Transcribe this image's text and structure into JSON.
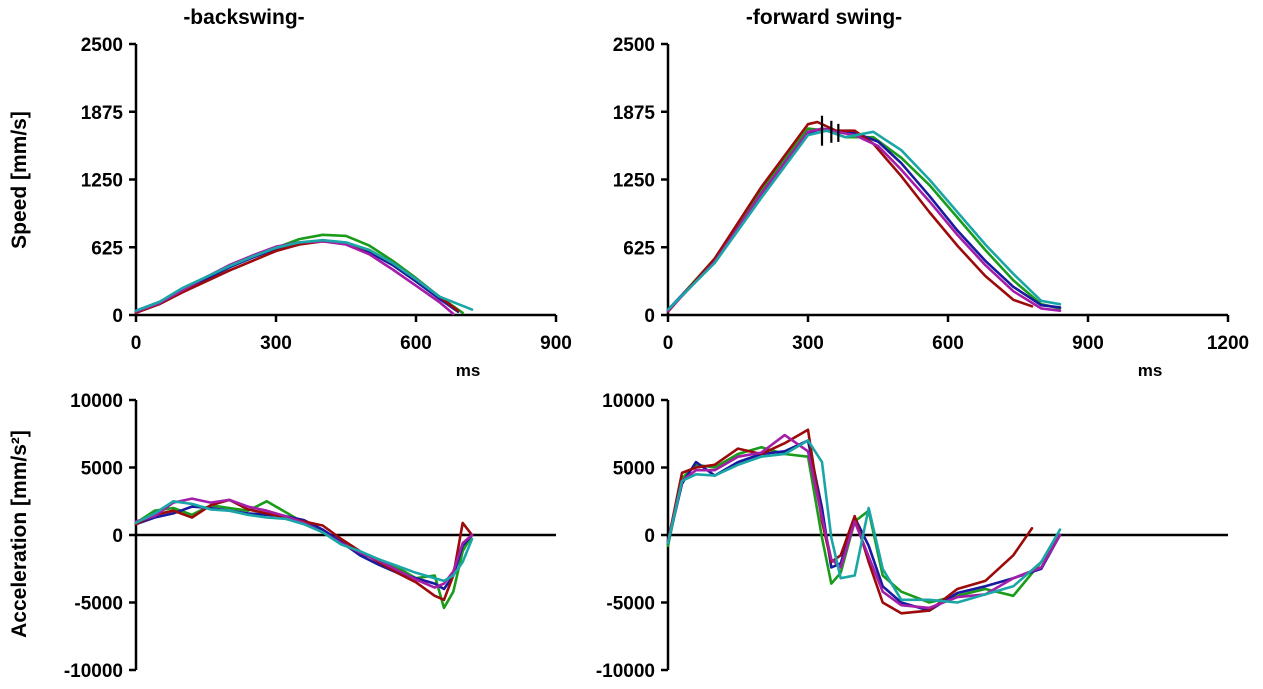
{
  "colors": {
    "green": "#1a9c1a",
    "blue": "#1a1aa0",
    "darkred": "#9c0a0a",
    "magenta": "#a41ea8",
    "teal": "#1aa6a6"
  },
  "chart_data": [
    {
      "id": "speed-backswing",
      "type": "line",
      "title": "-backswing-",
      "ylabel": "Speed [mm/s]",
      "xlabel": "",
      "xlim": [
        0,
        900
      ],
      "ylim": [
        0,
        2500
      ],
      "xticks": [
        "0",
        "300",
        "600",
        "900"
      ],
      "yticks": [
        "0",
        "625",
        "1250",
        "1875",
        "2500"
      ],
      "series": [
        {
          "color": "#1a9c1a",
          "x": [
            0,
            50,
            100,
            150,
            200,
            250,
            300,
            350,
            400,
            450,
            500,
            550,
            600,
            650,
            700
          ],
          "y": [
            30,
            110,
            230,
            330,
            440,
            540,
            620,
            700,
            740,
            730,
            640,
            500,
            340,
            170,
            20
          ]
        },
        {
          "color": "#1a1aa0",
          "x": [
            0,
            50,
            100,
            150,
            200,
            250,
            300,
            350,
            400,
            450,
            500,
            550,
            600,
            650,
            690
          ],
          "y": [
            40,
            120,
            230,
            330,
            440,
            530,
            610,
            660,
            690,
            660,
            580,
            460,
            310,
            150,
            30
          ]
        },
        {
          "color": "#9c0a0a",
          "x": [
            0,
            50,
            100,
            150,
            200,
            250,
            300,
            350,
            400,
            450,
            500,
            550,
            600,
            650,
            690
          ],
          "y": [
            20,
            100,
            210,
            310,
            410,
            500,
            590,
            650,
            680,
            660,
            600,
            480,
            330,
            170,
            40
          ]
        },
        {
          "color": "#a41ea8",
          "x": [
            0,
            50,
            100,
            150,
            200,
            250,
            300,
            350,
            400,
            450,
            500,
            550,
            600,
            650,
            680
          ],
          "y": [
            30,
            110,
            230,
            350,
            460,
            550,
            630,
            670,
            680,
            650,
            560,
            420,
            270,
            120,
            10
          ]
        },
        {
          "color": "#1aa6a6",
          "x": [
            0,
            50,
            100,
            150,
            200,
            250,
            300,
            350,
            400,
            450,
            500,
            550,
            600,
            650,
            720
          ],
          "y": [
            40,
            120,
            250,
            350,
            450,
            540,
            620,
            670,
            690,
            670,
            600,
            480,
            330,
            170,
            50
          ]
        }
      ]
    },
    {
      "id": "speed-forward",
      "type": "line",
      "title": "-forward swing-",
      "ylabel": "",
      "xlabel": "ms",
      "xlim": [
        0,
        1200
      ],
      "ylim": [
        0,
        2500
      ],
      "xticks": [
        "0",
        "300",
        "600",
        "900",
        "1200"
      ],
      "yticks": [
        "0",
        "625",
        "1250",
        "1875",
        "2500"
      ],
      "series": [
        {
          "color": "#1a9c1a",
          "x": [
            0,
            100,
            200,
            300,
            340,
            380,
            440,
            500,
            560,
            620,
            680,
            740,
            800,
            840
          ],
          "y": [
            40,
            520,
            1150,
            1720,
            1700,
            1640,
            1640,
            1450,
            1200,
            900,
            600,
            320,
            100,
            60
          ]
        },
        {
          "color": "#1a1aa0",
          "x": [
            0,
            100,
            200,
            300,
            330,
            360,
            400,
            450,
            500,
            560,
            620,
            680,
            740,
            800,
            840
          ],
          "y": [
            50,
            500,
            1100,
            1680,
            1720,
            1700,
            1680,
            1600,
            1400,
            1100,
            780,
            500,
            260,
            90,
            70
          ]
        },
        {
          "color": "#9c0a0a",
          "x": [
            0,
            100,
            200,
            300,
            320,
            360,
            400,
            440,
            500,
            560,
            620,
            680,
            740,
            780
          ],
          "y": [
            30,
            520,
            1180,
            1760,
            1780,
            1700,
            1700,
            1580,
            1280,
            950,
            640,
            360,
            140,
            80
          ]
        },
        {
          "color": "#a41ea8",
          "x": [
            0,
            100,
            200,
            300,
            330,
            360,
            400,
            450,
            500,
            560,
            620,
            680,
            740,
            800,
            840
          ],
          "y": [
            40,
            490,
            1120,
            1690,
            1720,
            1690,
            1660,
            1560,
            1340,
            1050,
            740,
            460,
            220,
            60,
            40
          ]
        },
        {
          "color": "#1aa6a6",
          "x": [
            0,
            100,
            200,
            300,
            340,
            380,
            440,
            500,
            560,
            620,
            680,
            740,
            800,
            840
          ],
          "y": [
            50,
            480,
            1080,
            1660,
            1700,
            1640,
            1690,
            1520,
            1250,
            950,
            650,
            380,
            130,
            100
          ]
        }
      ]
    },
    {
      "id": "acc-backswing",
      "type": "line",
      "title": "",
      "ylabel": "Acceleration [mm/s²]",
      "xlabel": "",
      "xlim": [
        0,
        900
      ],
      "ylim": [
        -10000,
        10000
      ],
      "xticks": [],
      "yticks": [
        "-10000",
        "-5000",
        "0",
        "5000",
        "10000"
      ],
      "series": [
        {
          "color": "#1a9c1a",
          "x": [
            0,
            40,
            80,
            120,
            160,
            200,
            240,
            280,
            320,
            360,
            400,
            440,
            480,
            520,
            560,
            600,
            640,
            660,
            680,
            700,
            720
          ],
          "y": [
            900,
            1800,
            2000,
            1500,
            2200,
            2000,
            1800,
            2500,
            1700,
            900,
            300,
            -600,
            -1400,
            -1800,
            -2400,
            -3200,
            -3000,
            -5400,
            -4200,
            -1200,
            0
          ]
        },
        {
          "color": "#1a1aa0",
          "x": [
            0,
            40,
            80,
            120,
            160,
            200,
            240,
            280,
            320,
            360,
            400,
            440,
            480,
            520,
            560,
            600,
            640,
            660,
            680,
            700,
            720
          ],
          "y": [
            800,
            1300,
            1600,
            2100,
            2000,
            1800,
            1600,
            1500,
            1400,
            1100,
            400,
            -500,
            -1500,
            -2200,
            -2800,
            -3200,
            -3600,
            -4000,
            -3000,
            -800,
            0
          ]
        },
        {
          "color": "#9c0a0a",
          "x": [
            0,
            40,
            80,
            120,
            160,
            200,
            240,
            280,
            320,
            360,
            400,
            440,
            480,
            520,
            560,
            600,
            640,
            660,
            680,
            700,
            720
          ],
          "y": [
            800,
            1500,
            1800,
            1300,
            2200,
            2600,
            1900,
            1600,
            1300,
            1000,
            700,
            -300,
            -1200,
            -2000,
            -2800,
            -3500,
            -4500,
            -4800,
            -3000,
            900,
            0
          ]
        },
        {
          "color": "#a41ea8",
          "x": [
            0,
            40,
            80,
            120,
            160,
            200,
            240,
            280,
            320,
            360,
            400,
            440,
            480,
            520,
            560,
            600,
            640,
            660,
            680,
            700,
            720
          ],
          "y": [
            1000,
            1400,
            2400,
            2700,
            2400,
            2600,
            2100,
            1800,
            1400,
            900,
            200,
            -600,
            -1300,
            -1900,
            -2600,
            -3300,
            -3900,
            -3600,
            -2700,
            -600,
            0
          ]
        },
        {
          "color": "#1aa6a6",
          "x": [
            0,
            40,
            80,
            120,
            160,
            200,
            240,
            280,
            320,
            360,
            400,
            440,
            480,
            520,
            560,
            600,
            640,
            660,
            680,
            700,
            720
          ],
          "y": [
            900,
            1600,
            2500,
            2300,
            1900,
            1800,
            1500,
            1300,
            1200,
            800,
            200,
            -700,
            -1200,
            -1800,
            -2300,
            -2800,
            -3200,
            -3400,
            -3000,
            -2000,
            -300
          ]
        }
      ]
    },
    {
      "id": "acc-forward",
      "type": "line",
      "title": "",
      "ylabel": "",
      "xlabel": "",
      "xlim": [
        0,
        1200
      ],
      "ylim": [
        -10000,
        10000
      ],
      "xticks": [],
      "yticks": [
        "-10000",
        "-5000",
        "0",
        "5000",
        "10000"
      ],
      "series": [
        {
          "color": "#1a9c1a",
          "x": [
            0,
            30,
            60,
            100,
            150,
            200,
            250,
            300,
            330,
            350,
            370,
            400,
            430,
            460,
            500,
            560,
            620,
            680,
            740,
            800,
            840
          ],
          "y": [
            -800,
            4200,
            5200,
            5000,
            6000,
            6500,
            6000,
            5800,
            -200,
            -3600,
            -2800,
            1000,
            1800,
            -3000,
            -4200,
            -5000,
            -4500,
            -4000,
            -4500,
            -2000,
            0
          ]
        },
        {
          "color": "#1a1aa0",
          "x": [
            0,
            30,
            60,
            100,
            150,
            200,
            250,
            300,
            330,
            350,
            370,
            400,
            430,
            460,
            500,
            560,
            620,
            680,
            740,
            800,
            840
          ],
          "y": [
            -600,
            3800,
            5400,
            4400,
            5400,
            6000,
            6200,
            7000,
            2000,
            -2400,
            -2100,
            1300,
            -800,
            -3800,
            -5000,
            -5600,
            -4300,
            -3800,
            -3200,
            -2500,
            0
          ]
        },
        {
          "color": "#9c0a0a",
          "x": [
            0,
            30,
            60,
            100,
            150,
            200,
            250,
            300,
            330,
            350,
            370,
            400,
            430,
            460,
            500,
            560,
            620,
            680,
            740,
            780
          ],
          "y": [
            -500,
            4600,
            5000,
            5200,
            6400,
            6000,
            6800,
            7800,
            1000,
            -2000,
            -1500,
            1400,
            -2000,
            -5000,
            -5800,
            -5600,
            -4000,
            -3400,
            -1500,
            500
          ]
        },
        {
          "color": "#a41ea8",
          "x": [
            0,
            30,
            60,
            100,
            150,
            200,
            250,
            300,
            330,
            350,
            370,
            400,
            430,
            460,
            500,
            560,
            620,
            680,
            740,
            800,
            840
          ],
          "y": [
            -500,
            4000,
            4800,
            4800,
            5800,
            6100,
            7400,
            6200,
            1300,
            -1800,
            -2400,
            1000,
            -1600,
            -4200,
            -5200,
            -5400,
            -4600,
            -4400,
            -3200,
            -2400,
            0
          ]
        },
        {
          "color": "#1aa6a6",
          "x": [
            0,
            30,
            60,
            100,
            150,
            200,
            250,
            300,
            330,
            350,
            370,
            400,
            430,
            460,
            500,
            560,
            620,
            680,
            740,
            800,
            840
          ],
          "y": [
            -600,
            4000,
            4500,
            4400,
            5200,
            5800,
            6000,
            7000,
            5400,
            -200,
            -3200,
            -3000,
            2000,
            -2500,
            -4800,
            -4800,
            -5000,
            -4400,
            -3800,
            -2000,
            400
          ]
        }
      ]
    }
  ],
  "unit_labels": [
    "ms",
    "ms"
  ]
}
